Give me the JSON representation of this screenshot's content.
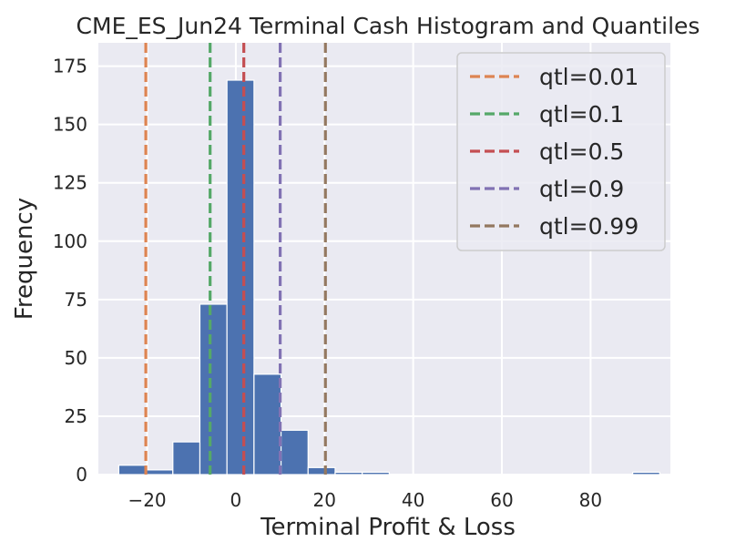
{
  "chart_data": {
    "type": "bar",
    "title": "CME_ES_Jun24 Terminal Cash Histogram and Quantiles",
    "xlabel": "Terminal Profit & Loss",
    "ylabel": "Frequency",
    "xlim": [
      -31,
      98
    ],
    "ylim": [
      0,
      185
    ],
    "xticks": [
      -20,
      0,
      20,
      40,
      60,
      80
    ],
    "xtick_labels": [
      "−20",
      "0",
      "20",
      "40",
      "60",
      "80"
    ],
    "yticks": [
      0,
      25,
      50,
      75,
      100,
      125,
      150,
      175
    ],
    "ytick_labels": [
      "0",
      "25",
      "50",
      "75",
      "100",
      "125",
      "150",
      "175"
    ],
    "grid": true,
    "legend_position": "top-right",
    "bin_edges": [
      -26.4,
      -20.3,
      -14.2,
      -8.1,
      -2.0,
      4.1,
      10.2,
      16.3,
      22.4,
      28.5,
      34.6,
      40.7,
      46.8,
      52.9,
      59.0,
      65.1,
      71.2,
      77.3,
      83.4,
      89.5,
      95.6
    ],
    "counts": [
      4,
      2,
      14,
      73,
      169,
      43,
      19,
      3,
      1,
      1,
      0,
      0,
      0,
      0,
      0,
      0,
      0,
      0,
      0,
      1
    ],
    "bar_color": "#4c72b0",
    "quantiles": [
      {
        "label": "qtl=0.01",
        "value": -20.3,
        "color": "#dd8452"
      },
      {
        "label": "qtl=0.1",
        "value": -5.8,
        "color": "#55a868"
      },
      {
        "label": "qtl=0.5",
        "value": 1.8,
        "color": "#c44e52"
      },
      {
        "label": "qtl=0.9",
        "value": 10.0,
        "color": "#8172b3"
      },
      {
        "label": "qtl=0.99",
        "value": 20.2,
        "color": "#937860"
      }
    ]
  }
}
